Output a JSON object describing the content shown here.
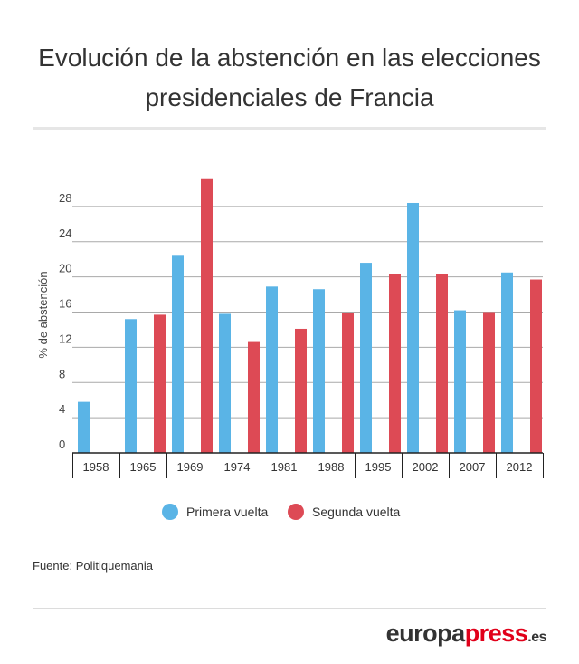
{
  "title_line1": "Evolución de la abstención en las elecciones",
  "title_line2": "presidenciales de Francia",
  "source": "Fuente: Politiquemania",
  "logo": {
    "part1": "europa",
    "part2": "press",
    "part3": ".es"
  },
  "colors": {
    "primera": "#5ab4e6",
    "segunda": "#dd4a55"
  },
  "chart_data": {
    "type": "bar",
    "title": "Evolución de la abstención en las elecciones presidenciales de Francia",
    "xlabel": "",
    "ylabel": "% de abstención",
    "ylim": [
      0,
      32
    ],
    "yticks": [
      0,
      4,
      8,
      12,
      16,
      20,
      24,
      28
    ],
    "grid": true,
    "legend_position": "bottom",
    "categories": [
      "1958",
      "1965",
      "1969",
      "1974",
      "1981",
      "1988",
      "1995",
      "2002",
      "2007",
      "2012"
    ],
    "series": [
      {
        "name": "Primera vuelta",
        "color": "#5ab4e6",
        "values": [
          5.8,
          15.2,
          22.4,
          15.8,
          18.9,
          18.6,
          21.6,
          28.4,
          16.2,
          20.5
        ]
      },
      {
        "name": "Segunda vuelta",
        "color": "#dd4a55",
        "values": [
          null,
          15.7,
          31.1,
          12.7,
          14.1,
          15.9,
          20.3,
          20.3,
          16.0,
          19.7
        ]
      }
    ]
  }
}
